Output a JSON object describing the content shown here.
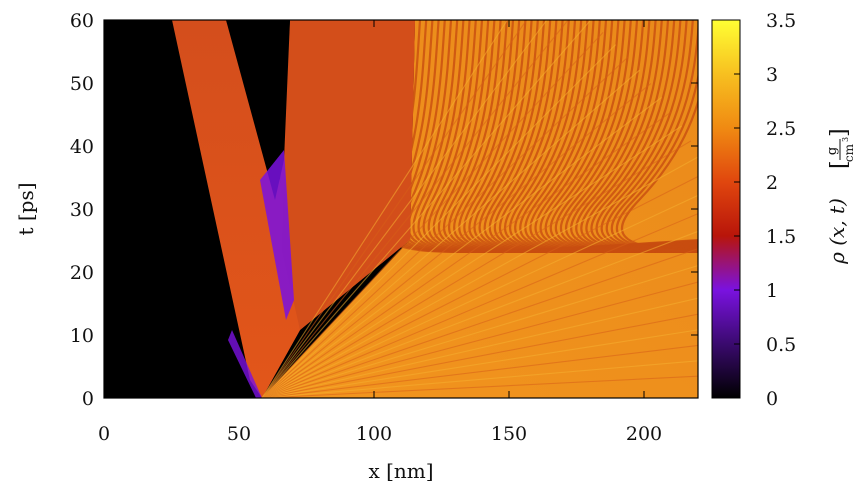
{
  "chart_data": {
    "type": "heatmap",
    "xlabel": "x [nm]",
    "ylabel": "t [ps]",
    "colorbar_label": {
      "main": "ρ (x, t)",
      "unit_numerator": "g",
      "unit_denominator": "cm",
      "unit_exponent": "3"
    },
    "xlim": [
      0,
      220
    ],
    "ylim": [
      0,
      60
    ],
    "clim": [
      0,
      3.5
    ],
    "xticks": [
      0,
      50,
      100,
      150,
      200
    ],
    "yticks": [
      0,
      10,
      20,
      30,
      40,
      50,
      60
    ],
    "cticks": [
      0,
      0.5,
      1,
      1.5,
      2,
      2.5,
      3,
      3.5
    ],
    "colormap": [
      "#000000",
      "#3a0a6e",
      "#7a12e0",
      "#b8150a",
      "#e0460e",
      "#f08a12",
      "#f7c020",
      "#ffff33"
    ],
    "colors": {
      "void": "#000000",
      "dense_jet": "#d64c1a",
      "striated_bulk": "#ee8a1c",
      "stripe": "#c84e10",
      "low_density_edge": "#7a12e0"
    },
    "regions": [
      {
        "name": "vacuum",
        "density": 0.0
      },
      {
        "name": "left-jet",
        "density": 2.0
      },
      {
        "name": "right-jet",
        "density": 2.0
      },
      {
        "name": "compressed-bulk",
        "density": 2.6
      }
    ],
    "grid": false,
    "legend": "colorbar-right"
  }
}
